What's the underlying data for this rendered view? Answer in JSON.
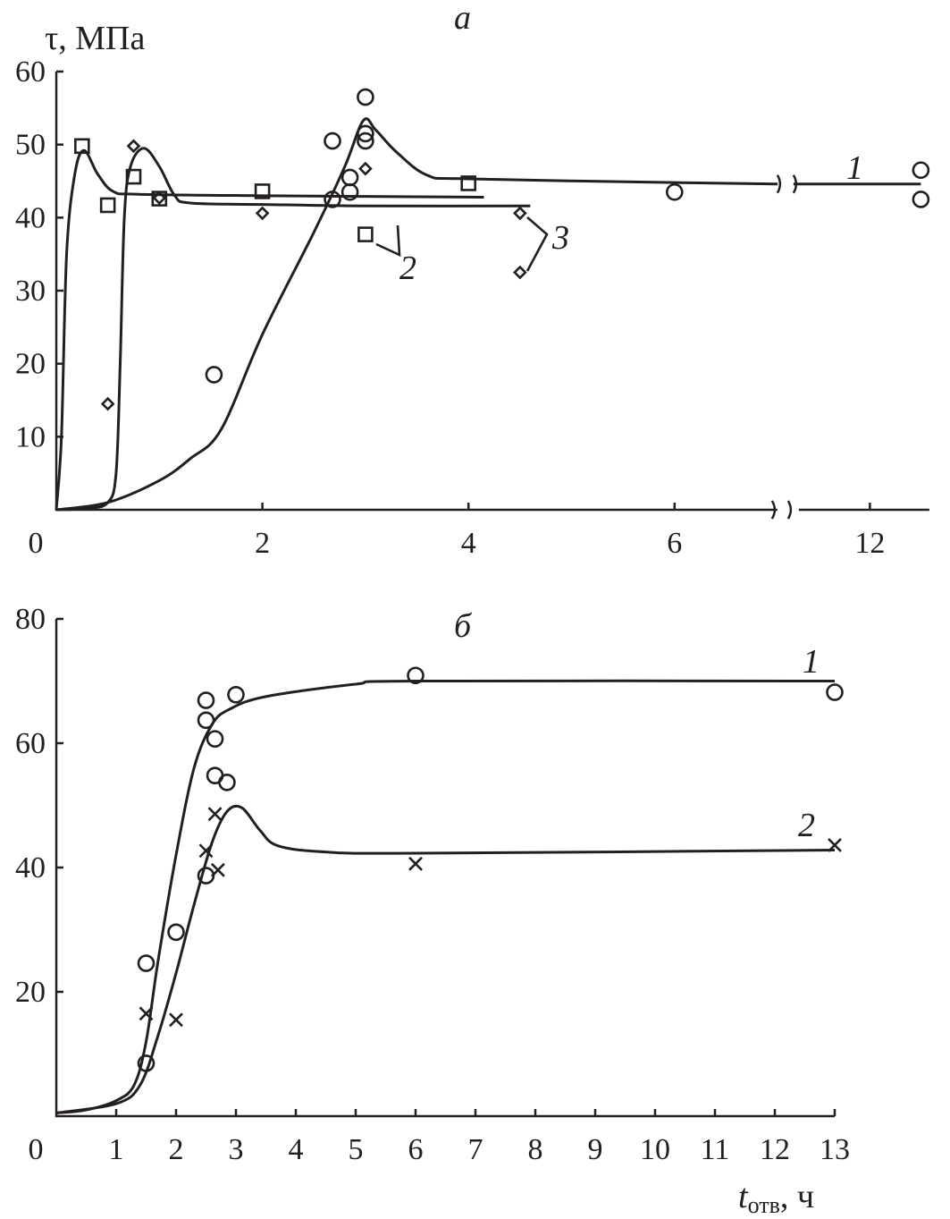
{
  "chart_data": [
    {
      "type": "scatter",
      "panel_label": "а",
      "ylabel": "τ, МПа",
      "xlabel": "",
      "ylim": [
        0,
        60
      ],
      "xlim": [
        0,
        12.7
      ],
      "axis_break": [
        7.05,
        11.1
      ],
      "x_ticks": [
        0,
        2,
        4,
        6,
        12
      ],
      "y_ticks": [
        10,
        20,
        30,
        40,
        50,
        60
      ],
      "grid": false,
      "series": [
        {
          "name": "1",
          "marker": "circle",
          "points": [
            [
              1.53,
              18.5
            ],
            [
              2.68,
              50.5
            ],
            [
              2.68,
              42.5
            ],
            [
              2.85,
              43.5
            ],
            [
              2.85,
              45.5
            ],
            [
              3.0,
              56.5
            ],
            [
              3.0,
              51.5
            ],
            [
              3.0,
              50.5
            ],
            [
              6.0,
              43.5
            ],
            [
              12.6,
              46.5
            ],
            [
              12.6,
              42.5
            ]
          ],
          "curve": [
            [
              0,
              0
            ],
            [
              0.5,
              1
            ],
            [
              1,
              4
            ],
            [
              1.3,
              7
            ],
            [
              1.6,
              11
            ],
            [
              2,
              24
            ],
            [
              2.5,
              38
            ],
            [
              2.8,
              47
            ],
            [
              2.98,
              53.3
            ],
            [
              3.1,
              52
            ],
            [
              3.3,
              49
            ],
            [
              3.6,
              45.8
            ],
            [
              4,
              45.3
            ],
            [
              6,
              44.8
            ],
            [
              7,
              44.6
            ]
          ],
          "curve_after_break": [
            [
              11.1,
              44.6
            ],
            [
              12.6,
              44.6
            ]
          ]
        },
        {
          "name": "2",
          "marker": "square",
          "points": [
            [
              0.25,
              49.8
            ],
            [
              0.5,
              41.7
            ],
            [
              0.75,
              45.6
            ],
            [
              1.0,
              42.6
            ],
            [
              2.0,
              43.6
            ],
            [
              3.0,
              37.7
            ],
            [
              4.0,
              44.7
            ]
          ],
          "curve": [
            [
              0,
              0
            ],
            [
              0.05,
              10
            ],
            [
              0.1,
              35
            ],
            [
              0.18,
              46
            ],
            [
              0.27,
              49.2
            ],
            [
              0.4,
              46
            ],
            [
              0.55,
              43.6
            ],
            [
              0.8,
              43.2
            ],
            [
              2,
              43
            ],
            [
              3,
              42.9
            ],
            [
              4.15,
              42.8
            ]
          ]
        },
        {
          "name": "3",
          "marker": "diamond",
          "points": [
            [
              0.5,
              14.5
            ],
            [
              0.75,
              49.8
            ],
            [
              1.0,
              42.7
            ],
            [
              2.0,
              40.6
            ],
            [
              3.0,
              46.7
            ],
            [
              4.5,
              40.6
            ],
            [
              4.5,
              32.5
            ]
          ],
          "curve": [
            [
              0,
              0
            ],
            [
              0.3,
              0.2
            ],
            [
              0.5,
              1
            ],
            [
              0.58,
              5
            ],
            [
              0.62,
              20
            ],
            [
              0.66,
              40
            ],
            [
              0.72,
              47
            ],
            [
              0.85,
              49.5
            ],
            [
              1.0,
              47
            ],
            [
              1.15,
              43
            ],
            [
              1.3,
              42
            ],
            [
              2,
              41.8
            ],
            [
              3,
              41.6
            ],
            [
              4.6,
              41.6
            ]
          ]
        }
      ]
    },
    {
      "type": "scatter",
      "panel_label": "б",
      "ylabel": "",
      "xlabel": "t",
      "xlabel_sub": "отв",
      "xlabel_unit": ", ч",
      "ylim": [
        0,
        80
      ],
      "xlim": [
        0,
        13
      ],
      "x_ticks": [
        0,
        1,
        2,
        3,
        4,
        5,
        6,
        7,
        8,
        9,
        10,
        11,
        12,
        13
      ],
      "y_ticks": [
        20,
        40,
        60,
        80
      ],
      "grid": false,
      "series": [
        {
          "name": "1",
          "marker": "circle",
          "points": [
            [
              1.5,
              24.6
            ],
            [
              1.5,
              8.5
            ],
            [
              2.0,
              29.6
            ],
            [
              2.5,
              38.7
            ],
            [
              2.5,
              66.9
            ],
            [
              2.5,
              63.7
            ],
            [
              2.65,
              60.7
            ],
            [
              2.65,
              54.8
            ],
            [
              2.85,
              53.7
            ],
            [
              3.0,
              67.8
            ],
            [
              6.0,
              70.9
            ],
            [
              13.0,
              68.2
            ]
          ],
          "curve": [
            [
              0,
              0.5
            ],
            [
              0.5,
              1
            ],
            [
              1,
              2.5
            ],
            [
              1.3,
              5
            ],
            [
              1.5,
              12
            ],
            [
              1.7,
              25
            ],
            [
              2,
              42
            ],
            [
              2.3,
              56
            ],
            [
              2.6,
              63
            ],
            [
              2.9,
              65.5
            ],
            [
              3.5,
              67.5
            ],
            [
              5,
              69.5
            ],
            [
              6,
              70
            ],
            [
              13,
              70
            ]
          ]
        },
        {
          "name": "2",
          "marker": "cross",
          "points": [
            [
              1.5,
              16.5
            ],
            [
              2.0,
              15.5
            ],
            [
              2.5,
              42.7
            ],
            [
              2.65,
              48.6
            ],
            [
              2.7,
              39.6
            ],
            [
              6.0,
              40.6
            ],
            [
              13.0,
              43.6
            ]
          ],
          "curve": [
            [
              0,
              0.5
            ],
            [
              1,
              2
            ],
            [
              1.4,
              5
            ],
            [
              1.7,
              13
            ],
            [
              2,
              23
            ],
            [
              2.3,
              34
            ],
            [
              2.6,
              44
            ],
            [
              2.85,
              49
            ],
            [
              3.1,
              49.6
            ],
            [
              3.4,
              46
            ],
            [
              3.7,
              43.5
            ],
            [
              4.5,
              42.5
            ],
            [
              6,
              42.3
            ],
            [
              13,
              42.8
            ]
          ]
        }
      ]
    }
  ]
}
